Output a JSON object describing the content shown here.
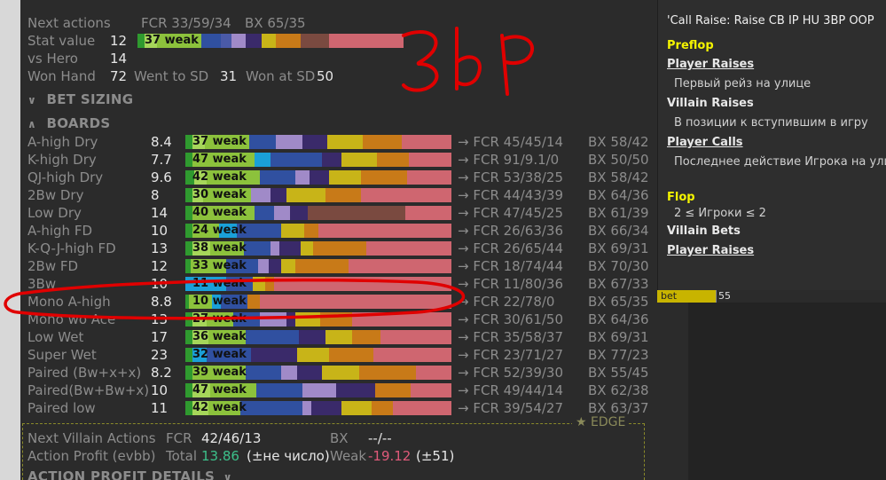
{
  "header": {
    "next_actions_label": "Next actions",
    "next_actions_fcr": "FCR 33/59/34",
    "next_actions_bx": "BX 65/35",
    "stat_value_label": "Stat value",
    "stat_value": "12",
    "stat_bar_text": "37 weak",
    "vs_hero_label": "vs Hero",
    "vs_hero": "14",
    "won_hand_label": "Won Hand",
    "won_hand": "72",
    "went_to_sd_label": "Went to SD",
    "went_to_sd": "31",
    "won_at_sd_label": "Won at SD",
    "won_at_sd": "50"
  },
  "sections": {
    "bet_sizing": "BET SIZING",
    "boards": "BOARDS"
  },
  "boards": [
    {
      "name": "A-high Dry",
      "value": "8.4",
      "bar": "37 weak",
      "fcr": "→ FCR 45/45/14",
      "fcr_suffix": "",
      "bx": "BX 58/42"
    },
    {
      "name": "K-high Dry",
      "value": "7.7",
      "bar": "47 weak",
      "fcr": "→ FCR 91/9.1/0",
      "fcr_suffix": "",
      "bx": "BX 50/50"
    },
    {
      "name": "QJ-high Dry",
      "value": "9.6",
      "bar": "42 weak",
      "fcr": "→ FCR 53/38/25",
      "fcr_suffix": "",
      "bx": "BX 58/42"
    },
    {
      "name": "2Bw Dry",
      "value": "8",
      "bar": "30 weak",
      "fcr": "→ FCR 44/43/39",
      "fcr_suffix": "",
      "bx": "BX 64/36"
    },
    {
      "name": "Low Dry",
      "value": "14",
      "bar": "40 weak",
      "fcr": "→ FCR 47/45/25",
      "fcr_suffix": "",
      "bx": "BX 61/39"
    },
    {
      "name": "A-high FD",
      "value": "10",
      "bar": "24 weak",
      "fcr": "→ FCR 26/63/36",
      "fcr_suffix": "",
      "bx": "BX 66/34"
    },
    {
      "name": "K-Q-J-high FD",
      "value": "13",
      "bar": "38 weak",
      "fcr": "→ FCR 26/65/44",
      "fcr_suffix": "",
      "bx": "BX 69/31"
    },
    {
      "name": "2Bw FD",
      "value": "12",
      "bar": "33 weak",
      "fcr": "→ FCR 18/74/44",
      "fcr_suffix": "",
      "bx": "BX 70/30"
    },
    {
      "name": "3Bw",
      "value": "10",
      "bar": "11 weak",
      "fcr": "→ FCR 11/80/36",
      "fcr_suffix": "",
      "bx": "BX 67/33"
    },
    {
      "name": "Mono A-high",
      "value": "8.8",
      "bar": "10 weak",
      "fcr": "→ FCR 22/78/0",
      "fcr_suffix": "",
      "bx": "BX 65/35"
    },
    {
      "name": "Mono wo Ace",
      "value": "13",
      "bar": "27 weak",
      "fcr": "→ FCR 30/61/50",
      "fcr_suffix": "",
      "bx": "BX 64/36"
    },
    {
      "name": "Low Wet",
      "value": "17",
      "bar": "36 weak",
      "fcr": "→ FCR 35/58/37",
      "fcr_suffix": "",
      "bx": "BX 69/31"
    },
    {
      "name": "Super Wet",
      "value": "23",
      "bar": "32 weak",
      "fcr": "→ FCR 23/71/27",
      "fcr_suffix": "",
      "bx": "BX 77/23"
    },
    {
      "name": "Paired (Bw+x+x)",
      "value": "8.2",
      "bar": "39 weak",
      "fcr": "→ FCR 52/39/30",
      "fcr_suffix": "",
      "bx": "BX 55/45"
    },
    {
      "name": "Paired(Bw+Bw+x)",
      "value": "10",
      "bar": "47 weak",
      "fcr": "→ FCR 49/44/14",
      "fcr_suffix": "",
      "bx": "BX 62/38"
    },
    {
      "name": "Paired low",
      "value": "11",
      "bar": "42 weak",
      "fcr": "→ FCR 39/54/27",
      "fcr_suffix": "",
      "bx": "BX 63/37"
    }
  ],
  "footer": {
    "edge_label": "★ EDGE",
    "next_villain_label": "Next Villain Actions",
    "next_villain_fcr_label": "FCR",
    "next_villain_fcr": "42/46/13",
    "next_villain_bx_label": "BX",
    "next_villain_bx": "--/--",
    "action_profit_label": "Action Profit (evbb)",
    "total_label": "Total",
    "total_value": "13.86",
    "total_note": "(±не число)",
    "weak_label": "Weak",
    "weak_value": "-19.12",
    "weak_note": "(±51)",
    "details": "ACTION PROFIT DETAILS"
  },
  "popup": {
    "title": "'Call Raise: Raise CB IP HU 3BP OOP",
    "preflop": "Preflop",
    "player_raises": "Player Raises",
    "player_raises_desc": "Первый рейз на улице",
    "villain_raises": "Villain Raises",
    "villain_raises_desc": "В позиции к вступившим в игру",
    "player_calls": "Player Calls",
    "player_calls_desc": "Последнее действие Игрока на улице",
    "flop": "Flop",
    "players_cond": "2 ≤ Игроки ≤ 2",
    "villain_bets": "Villain Bets",
    "player_raises_flop": "Player Raises"
  },
  "under_popup": {
    "strip_text": "bet",
    "strip_value": "55"
  },
  "annotation": {
    "handwritten": "3bP"
  },
  "colors": {
    "bg": "#2b2b2b",
    "text_dim": "#8c8c8c",
    "text_bright": "#e6e6e6",
    "yellow": "#f4f400",
    "annotation_red": "#e00000"
  }
}
